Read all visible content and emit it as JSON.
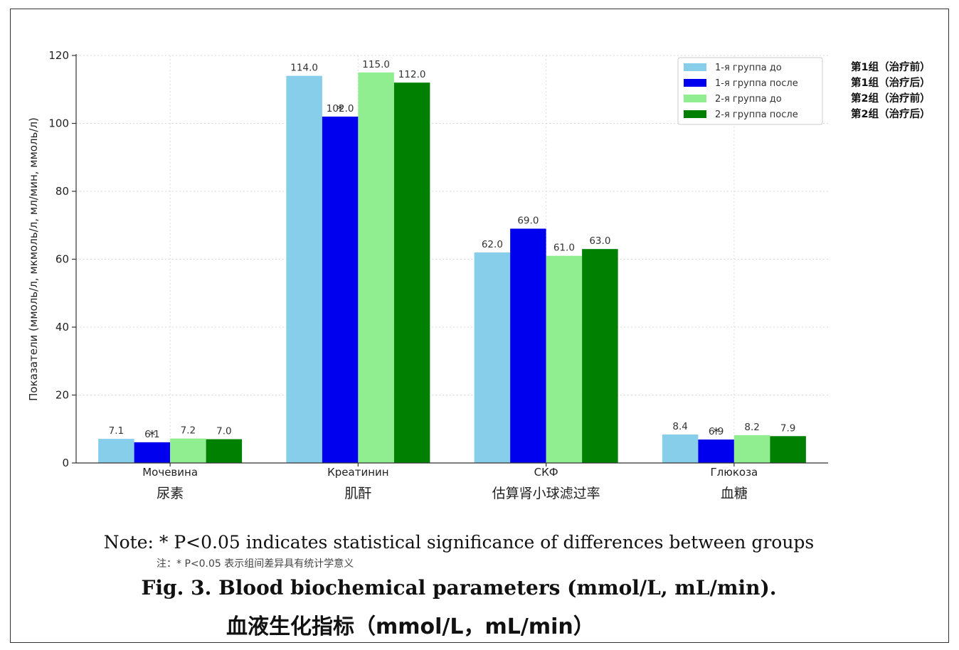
{
  "chart_data": {
    "type": "bar",
    "ylabel": "Показатели (ммоль/л, мкмоль/л, мл/мин, ммоль/л)",
    "ylim": [
      0,
      120
    ],
    "yticks": [
      0,
      20,
      40,
      60,
      80,
      100,
      120
    ],
    "grid": true,
    "legend_placement": "top-right",
    "categories": [
      "Мочевина",
      "Креатинин",
      "СКФ",
      "Глюкоза"
    ],
    "categories_cn": [
      "尿素",
      "肌酐",
      "估算肾小球滤过率",
      "血糖"
    ],
    "series": [
      {
        "name": "1-я группа до",
        "name_cn": "第1组（治疗前）",
        "color": "#87ceeb",
        "values": [
          7.1,
          114.0,
          62.0,
          8.4
        ],
        "labels": [
          "7.1",
          "114.0",
          "62.0",
          "8.4"
        ]
      },
      {
        "name": "1-я группа после",
        "name_cn": "第1组（治疗后）",
        "color": "#0000ee",
        "values": [
          6.1,
          102.0,
          69.0,
          6.9
        ],
        "labels": [
          "6.1",
          "102.0",
          "69.0",
          "6.9"
        ]
      },
      {
        "name": "2-я группа до",
        "name_cn": "第2组（治疗前）",
        "color": "#90ee90",
        "values": [
          7.2,
          115.0,
          61.0,
          8.2
        ],
        "labels": [
          "7.2",
          "115.0",
          "61.0",
          "8.2"
        ]
      },
      {
        "name": "2-я группа после",
        "name_cn": "第2组（治疗后）",
        "color": "#008000",
        "values": [
          7.0,
          112.0,
          63.0,
          7.9
        ],
        "labels": [
          "7.0",
          "112.0",
          "63.0",
          "7.9"
        ]
      }
    ],
    "significance_markers": [
      {
        "series": 1,
        "category": 0,
        "symbol": "*"
      },
      {
        "series": 1,
        "category": 1,
        "symbol": "*"
      },
      {
        "series": 1,
        "category": 3,
        "symbol": "*"
      }
    ]
  },
  "note": {
    "en": "Note: * P<0.05 indicates statistical significance of differences between groups",
    "cn": "注：* P<0.05 表示组间差异具有统计学意义"
  },
  "caption": {
    "en": "Fig. 3. Blood biochemical parameters (mmol/L, mL/min).",
    "cn": "血液生化指标（mmol/L，mL/min）"
  }
}
